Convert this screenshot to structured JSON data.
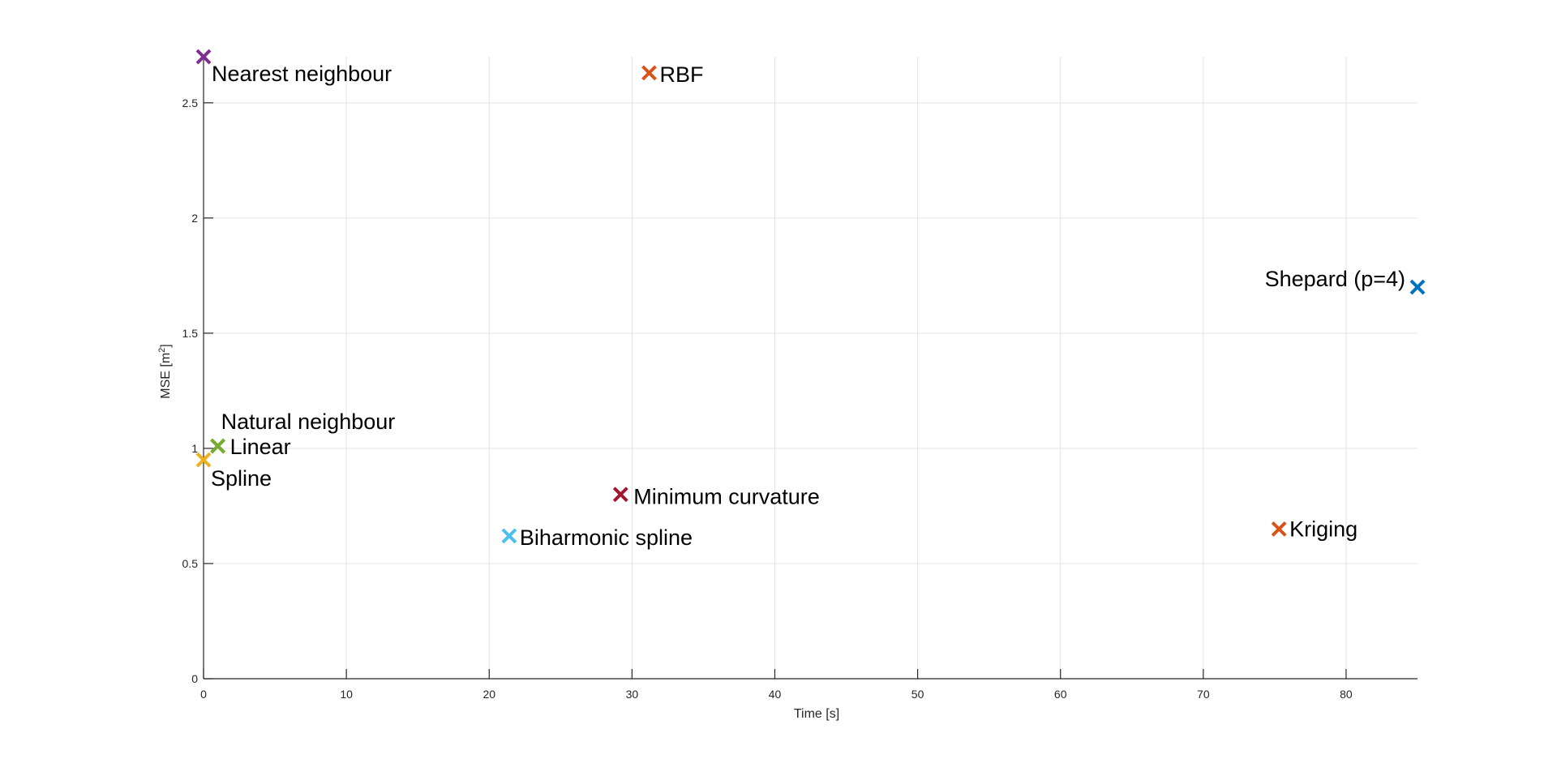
{
  "chart_data": {
    "type": "scatter",
    "title": "",
    "xlabel": "Time [s]",
    "ylabel_main": "MSE [m",
    "ylabel_sup": "2",
    "ylabel_end": "]",
    "xlim": [
      0,
      85
    ],
    "ylim": [
      0,
      2.7
    ],
    "xticks": [
      "0",
      "10",
      "20",
      "30",
      "40",
      "50",
      "60",
      "70",
      "80"
    ],
    "yticks": [
      "0",
      "0.5",
      "1",
      "1.5",
      "2",
      "2.5"
    ],
    "grid": true,
    "marker": "x",
    "points": [
      {
        "label": "Nearest neighbour",
        "x": 0.0,
        "y": 2.7,
        "color": "#7E2F8E"
      },
      {
        "label": "RBF",
        "x": 31.2,
        "y": 2.63,
        "color": "#D95319"
      },
      {
        "label": "Shepard (p=4)",
        "x": 85.0,
        "y": 1.7,
        "color": "#0072BD"
      },
      {
        "label": "Natural neighbour",
        "x": 1.0,
        "y": 1.01,
        "color": "#77AC30"
      },
      {
        "label": "Linear",
        "x": 1.0,
        "y": 1.01,
        "color": "#77AC30"
      },
      {
        "label": "Spline",
        "x": 0.0,
        "y": 0.95,
        "color": "#EDB120"
      },
      {
        "label": "Minimum curvature",
        "x": 29.2,
        "y": 0.8,
        "color": "#A2142F"
      },
      {
        "label": "Biharmonic spline",
        "x": 21.4,
        "y": 0.62,
        "color": "#4DBEEE"
      },
      {
        "label": "Kriging",
        "x": 75.3,
        "y": 0.65,
        "color": "#D95319"
      }
    ]
  }
}
